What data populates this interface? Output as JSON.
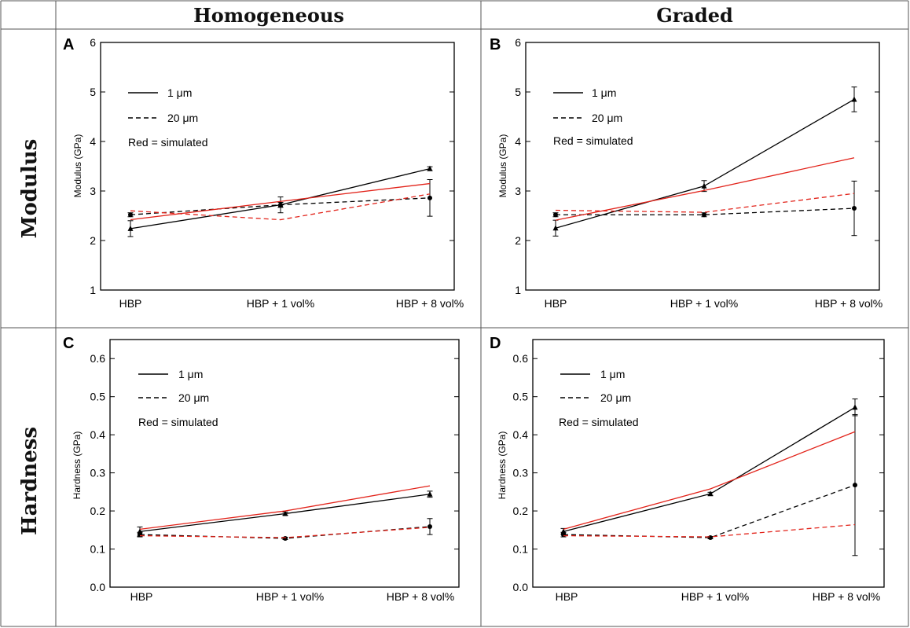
{
  "columns": [
    "Homogeneous",
    "Graded"
  ],
  "rows": [
    "Modulus",
    "Hardness"
  ],
  "colors": {
    "measured": "#000000",
    "simulated": "#e2231a"
  },
  "legend": {
    "solid": "1 μm",
    "dashed": "20 μm",
    "note": "Red = simulated"
  },
  "chart_data": [
    {
      "panel": "A",
      "type": "line",
      "column": "Homogeneous",
      "row": "Modulus",
      "ylabel": "Modulus (GPa)",
      "ylim": [
        1,
        6
      ],
      "yticks": [
        1,
        2,
        3,
        4,
        5,
        6
      ],
      "categories": [
        "HBP",
        "HBP + 1 vol%",
        "HBP + 8 vol%"
      ],
      "series": [
        {
          "name": "1 μm",
          "style": "solid",
          "color": "measured",
          "marker": "triangle",
          "values": [
            2.24,
            2.72,
            3.45
          ],
          "errors": [
            0.16,
            0.05,
            0.04
          ]
        },
        {
          "name": "20 μm",
          "style": "dashed",
          "color": "measured",
          "marker": "circle",
          "values": [
            2.52,
            2.72,
            2.86
          ],
          "errors": [
            0.04,
            0.16,
            0.37
          ]
        },
        {
          "name": "1 μm simulated",
          "style": "solid",
          "color": "simulated",
          "marker": "none",
          "values": [
            2.42,
            2.79,
            3.15
          ]
        },
        {
          "name": "20 μm simulated",
          "style": "dashed",
          "color": "simulated",
          "marker": "none",
          "values": [
            2.6,
            2.42,
            2.94
          ]
        }
      ]
    },
    {
      "panel": "B",
      "type": "line",
      "column": "Graded",
      "row": "Modulus",
      "ylabel": "Modulus (GPa)",
      "ylim": [
        1,
        6
      ],
      "yticks": [
        1,
        2,
        3,
        4,
        5,
        6
      ],
      "categories": [
        "HBP",
        "HBP + 1 vol%",
        "HBP + 8 vol%"
      ],
      "series": [
        {
          "name": "1 μm",
          "style": "solid",
          "color": "measured",
          "marker": "triangle",
          "values": [
            2.25,
            3.1,
            4.85
          ],
          "errors": [
            0.16,
            0.11,
            0.25
          ]
        },
        {
          "name": "20 μm",
          "style": "dashed",
          "color": "measured",
          "marker": "circle",
          "values": [
            2.52,
            2.52,
            2.65
          ],
          "errors": [
            0.04,
            0.04,
            0.55
          ]
        },
        {
          "name": "1 μm simulated",
          "style": "solid",
          "color": "simulated",
          "marker": "none",
          "values": [
            2.41,
            3.01,
            3.67
          ]
        },
        {
          "name": "20 μm simulated",
          "style": "dashed",
          "color": "simulated",
          "marker": "none",
          "values": [
            2.61,
            2.57,
            2.95
          ]
        }
      ]
    },
    {
      "panel": "C",
      "type": "line",
      "column": "Homogeneous",
      "row": "Hardness",
      "ylabel": "Hardness (GPa)",
      "ylim": [
        0,
        0.65
      ],
      "yticks": [
        0.0,
        0.1,
        0.2,
        0.3,
        0.4,
        0.5,
        0.6
      ],
      "categories": [
        "HBP",
        "HBP + 1 vol%",
        "HBP + 8 vol%"
      ],
      "series": [
        {
          "name": "1 μm",
          "style": "solid",
          "color": "measured",
          "marker": "triangle",
          "values": [
            0.146,
            0.193,
            0.244
          ],
          "errors": [
            0.012,
            0.004,
            0.008
          ]
        },
        {
          "name": "20 μm",
          "style": "dashed",
          "color": "measured",
          "marker": "circle",
          "values": [
            0.138,
            0.128,
            0.159
          ],
          "errors": [
            0.006,
            0.003,
            0.021
          ]
        },
        {
          "name": "1 μm simulated",
          "style": "solid",
          "color": "simulated",
          "marker": "none",
          "values": [
            0.152,
            0.2,
            0.266
          ]
        },
        {
          "name": "20 μm simulated",
          "style": "dashed",
          "color": "simulated",
          "marker": "none",
          "values": [
            0.135,
            0.13,
            0.157
          ]
        }
      ]
    },
    {
      "panel": "D",
      "type": "line",
      "column": "Graded",
      "row": "Hardness",
      "ylabel": "Hardness (GPa)",
      "ylim": [
        0,
        0.65
      ],
      "yticks": [
        0.0,
        0.1,
        0.2,
        0.3,
        0.4,
        0.5,
        0.6
      ],
      "categories": [
        "HBP",
        "HBP + 1 vol%",
        "HBP + 8 vol%"
      ],
      "series": [
        {
          "name": "1 μm",
          "style": "solid",
          "color": "measured",
          "marker": "triangle",
          "values": [
            0.146,
            0.245,
            0.472
          ],
          "errors": [
            0.008,
            0.004,
            0.022
          ]
        },
        {
          "name": "20 μm",
          "style": "dashed",
          "color": "measured",
          "marker": "circle",
          "values": [
            0.138,
            0.13,
            0.268
          ],
          "errors": [
            0.006,
            0.003,
            0.185
          ]
        },
        {
          "name": "1 μm simulated",
          "style": "solid",
          "color": "simulated",
          "marker": "none",
          "values": [
            0.152,
            0.258,
            0.408
          ]
        },
        {
          "name": "20 μm simulated",
          "style": "dashed",
          "color": "simulated",
          "marker": "none",
          "values": [
            0.135,
            0.132,
            0.164
          ]
        }
      ]
    }
  ]
}
